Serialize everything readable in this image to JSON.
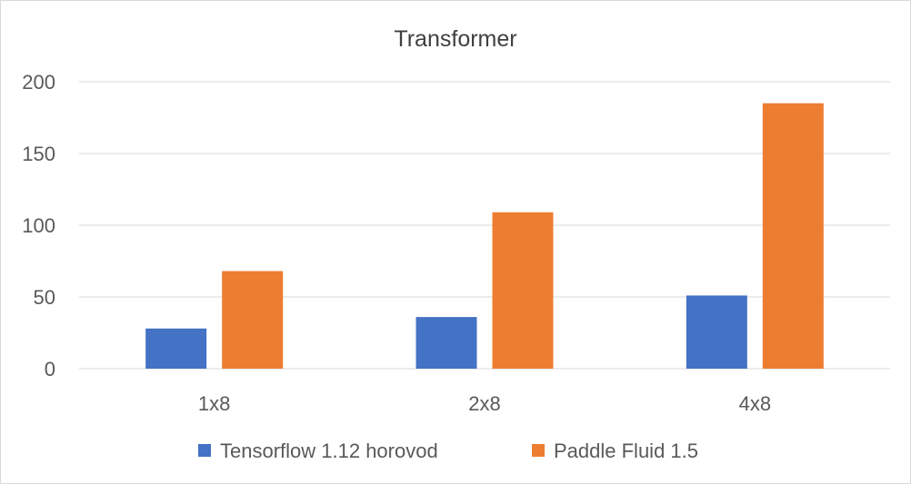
{
  "chart_data": {
    "type": "bar",
    "title": "Transformer",
    "categories": [
      "1x8",
      "2x8",
      "4x8"
    ],
    "series": [
      {
        "name": "Tensorflow 1.12 horovod",
        "values": [
          28,
          36,
          51
        ],
        "color": "#4472C4"
      },
      {
        "name": "Paddle Fluid 1.5",
        "values": [
          68,
          109,
          185
        ],
        "color": "#ED7D31"
      }
    ],
    "ylim": [
      0,
      200
    ],
    "yticks": [
      0,
      50,
      100,
      150,
      200
    ],
    "grid": true,
    "legend_position": "bottom",
    "xlabel": "",
    "ylabel": ""
  }
}
